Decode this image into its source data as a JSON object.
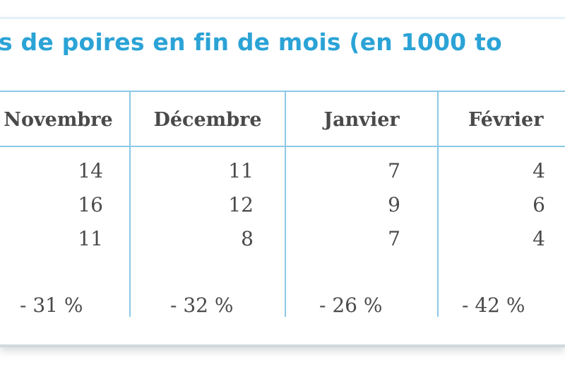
{
  "table": {
    "title": "s de poires en fin de mois (en 1000 to",
    "headers": [
      "Novembre",
      "Décembre",
      "Janvier",
      "Février"
    ],
    "rows": [
      [
        "14",
        "11",
        "7",
        "4"
      ],
      [
        "16",
        "12",
        "9",
        "6"
      ],
      [
        "11",
        "8",
        "7",
        "4"
      ]
    ],
    "changes": [
      "- 31 %",
      "- 32 %",
      "- 26 %",
      "- 42 %"
    ]
  },
  "colors": {
    "title": "#2ba3d6",
    "rules": "#8cc8e6",
    "text": "#4a4a4a"
  }
}
